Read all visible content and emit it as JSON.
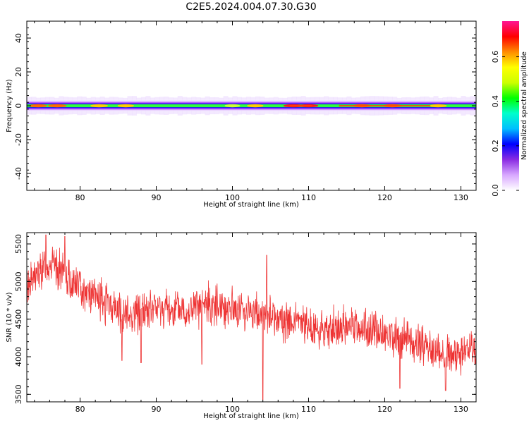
{
  "title": "C2E5.2024.004.07.30.G30",
  "chart_data": [
    {
      "type": "heatmap",
      "xlabel": "Height of straight line (km)",
      "ylabel": "Frequency (Hz)",
      "xlim": [
        73,
        132
      ],
      "ylim": [
        -50,
        50
      ],
      "x_ticks": [
        80,
        90,
        100,
        110,
        120,
        130
      ],
      "y_ticks": [
        -40,
        -20,
        0,
        20,
        40
      ],
      "colorbar": {
        "label": "Normalized spectral amplitude",
        "range": [
          0,
          0.76
        ],
        "ticks": [
          "0.0",
          "0.2",
          "0.4",
          "0.6"
        ],
        "colors": [
          "#ffffff",
          "#d8a8ff",
          "#8a2be2",
          "#0000ff",
          "#00bfff",
          "#00ffcc",
          "#00ff00",
          "#ccff00",
          "#ffff00",
          "#ff8c00",
          "#ff0000",
          "#ff1493"
        ]
      },
      "band": {
        "center_hz": 0,
        "core_halfwidth_hz": 1.5,
        "halo_halfwidth_hz": 4,
        "peak_amplitudes": [
          {
            "x": 74.5,
            "value": 0.62
          },
          {
            "x": 77,
            "value": 0.66
          },
          {
            "x": 82.5,
            "value": 0.6
          },
          {
            "x": 86,
            "value": 0.55
          },
          {
            "x": 100,
            "value": 0.5
          },
          {
            "x": 103,
            "value": 0.55
          },
          {
            "x": 108,
            "value": 0.72
          },
          {
            "x": 110,
            "value": 0.7
          },
          {
            "x": 117,
            "value": 0.64
          },
          {
            "x": 121,
            "value": 0.66
          },
          {
            "x": 127,
            "value": 0.6
          }
        ]
      }
    },
    {
      "type": "line",
      "xlabel": "Height of straight line (km)",
      "ylabel": "SNR (10 * v/v)",
      "xlim": [
        73,
        132
      ],
      "ylim": [
        3400,
        5650
      ],
      "x_ticks": [
        80,
        90,
        100,
        110,
        120,
        130
      ],
      "y_ticks": [
        3500,
        4000,
        4500,
        5000,
        5500
      ],
      "color": "#ee3333",
      "trend": [
        {
          "x": 73,
          "y": 4950
        },
        {
          "x": 76,
          "y": 5250
        },
        {
          "x": 79,
          "y": 5000
        },
        {
          "x": 82,
          "y": 4800
        },
        {
          "x": 86,
          "y": 4550
        },
        {
          "x": 90,
          "y": 4650
        },
        {
          "x": 94,
          "y": 4600
        },
        {
          "x": 97,
          "y": 4700
        },
        {
          "x": 100,
          "y": 4650
        },
        {
          "x": 104,
          "y": 4550
        },
        {
          "x": 108,
          "y": 4450
        },
        {
          "x": 112,
          "y": 4350
        },
        {
          "x": 116,
          "y": 4400
        },
        {
          "x": 120,
          "y": 4300
        },
        {
          "x": 124,
          "y": 4200
        },
        {
          "x": 128,
          "y": 4000
        },
        {
          "x": 132,
          "y": 4050
        }
      ],
      "noise_amplitude": 280,
      "dips": [
        {
          "x": 85.5,
          "y": 3950
        },
        {
          "x": 88,
          "y": 3920
        },
        {
          "x": 96,
          "y": 3900
        },
        {
          "x": 104,
          "y": 3430
        },
        {
          "x": 122,
          "y": 3580
        },
        {
          "x": 128,
          "y": 3550
        }
      ],
      "spikes": [
        {
          "x": 75.5,
          "y": 5620
        },
        {
          "x": 78,
          "y": 5600
        },
        {
          "x": 104.5,
          "y": 5350
        }
      ]
    }
  ]
}
